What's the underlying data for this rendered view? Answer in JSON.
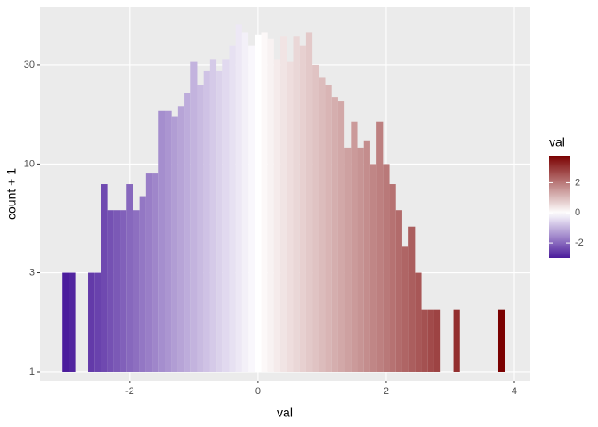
{
  "chart_data": {
    "type": "histogram",
    "x_label": "val",
    "y_label": "count + 1",
    "bins": [
      -3.05,
      -2.95,
      -2.85,
      -2.75,
      -2.65,
      -2.55,
      -2.45,
      -2.35,
      -2.25,
      -2.15,
      -2.05,
      -1.95,
      -1.85,
      -1.75,
      -1.65,
      -1.55,
      -1.45,
      -1.35,
      -1.25,
      -1.15,
      -1.05,
      -0.95,
      -0.85,
      -0.75,
      -0.65,
      -0.55,
      -0.45,
      -0.35,
      -0.25,
      -0.15,
      -0.05,
      0.05,
      0.15,
      0.25,
      0.35,
      0.45,
      0.55,
      0.65,
      0.75,
      0.85,
      0.95,
      1.05,
      1.15,
      1.25,
      1.35,
      1.45,
      1.55,
      1.65,
      1.75,
      1.85,
      1.95,
      2.05,
      2.15,
      2.25,
      2.35,
      2.45,
      2.55,
      2.65,
      2.75,
      2.85,
      2.95,
      3.05,
      3.15,
      3.25,
      3.35,
      3.45,
      3.55,
      3.65,
      3.75,
      3.85
    ],
    "values": [
      3,
      3,
      1,
      1,
      3,
      3,
      8,
      6,
      6,
      6,
      8,
      6,
      7,
      9,
      9,
      18,
      18,
      17,
      19,
      22,
      31,
      24,
      28,
      32,
      28,
      32,
      37,
      47,
      43,
      37,
      42,
      43,
      40,
      32,
      41,
      31,
      41,
      37,
      43,
      30,
      26,
      24,
      21,
      20,
      12,
      16,
      12,
      13,
      10,
      16,
      10,
      8,
      6,
      4,
      5,
      3,
      2,
      2,
      2,
      1,
      1,
      2,
      1,
      1,
      1,
      1,
      1,
      1,
      2
    ],
    "xlim": [
      -3.4,
      4.25
    ],
    "xticks": [
      -2,
      0,
      2,
      4
    ],
    "ylim": [
      0.906,
      56.9
    ],
    "yticks": [
      1,
      3,
      10,
      30
    ],
    "log_y": true,
    "grid": true,
    "fill_scale": {
      "title": "val",
      "low": "#4b1c9c",
      "mid": "#ffffff",
      "high": "#7a0000",
      "limits": [
        -3.0,
        3.8
      ],
      "ticks": [
        -2,
        0,
        2
      ]
    }
  }
}
